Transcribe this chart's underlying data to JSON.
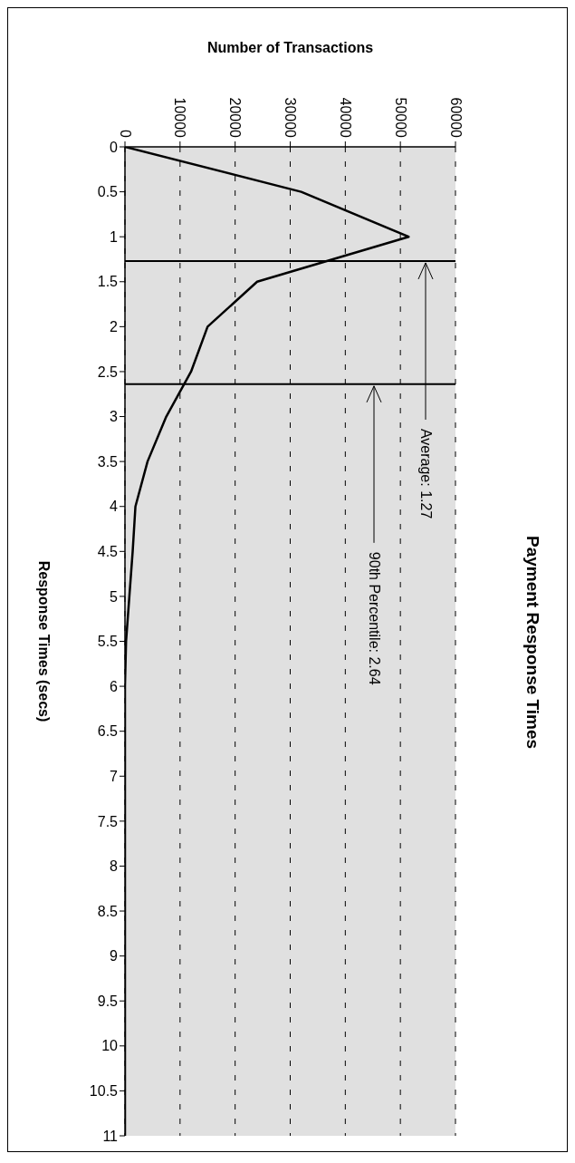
{
  "chart_data": {
    "type": "line",
    "title": "Payment Response Times",
    "xlabel": "Number of Transactions",
    "ylabel": "Response Times (secs)",
    "x": [
      0,
      32000,
      51500,
      24000,
      15000,
      12000,
      7500,
      4100,
      1900,
      1400,
      800,
      200,
      0,
      0,
      0,
      0,
      0,
      0,
      0,
      0,
      0,
      0,
      0
    ],
    "series": [
      {
        "color": "#000000",
        "values": [
          0,
          0.5,
          1,
          1.5,
          2,
          2.5,
          3,
          3.5,
          4,
          4.5,
          5,
          5.5,
          6,
          6.5,
          7,
          7.5,
          8,
          8.5,
          9,
          9.5,
          10,
          10.5,
          11
        ]
      }
    ],
    "xlim": [
      0,
      60000
    ],
    "xticks": [
      0,
      10000,
      20000,
      30000,
      40000,
      50000,
      60000
    ],
    "ylim": [
      11,
      0
    ],
    "yticks": [
      0,
      0.5,
      1,
      1.5,
      2,
      2.5,
      3,
      3.5,
      4,
      4.5,
      5,
      5.5,
      6,
      6.5,
      7,
      7.5,
      8,
      8.5,
      9,
      9.5,
      10,
      10.5,
      11
    ],
    "ref_lines": [
      {
        "axis": "y",
        "value": 1.27,
        "label": "Average: 1.27",
        "color": "#000000"
      },
      {
        "axis": "y",
        "value": 2.64,
        "label": "90th Percentile: 2.64",
        "color": "#000000"
      }
    ],
    "grid": "x",
    "legend": false,
    "marker": "none",
    "line_style": "solid"
  }
}
